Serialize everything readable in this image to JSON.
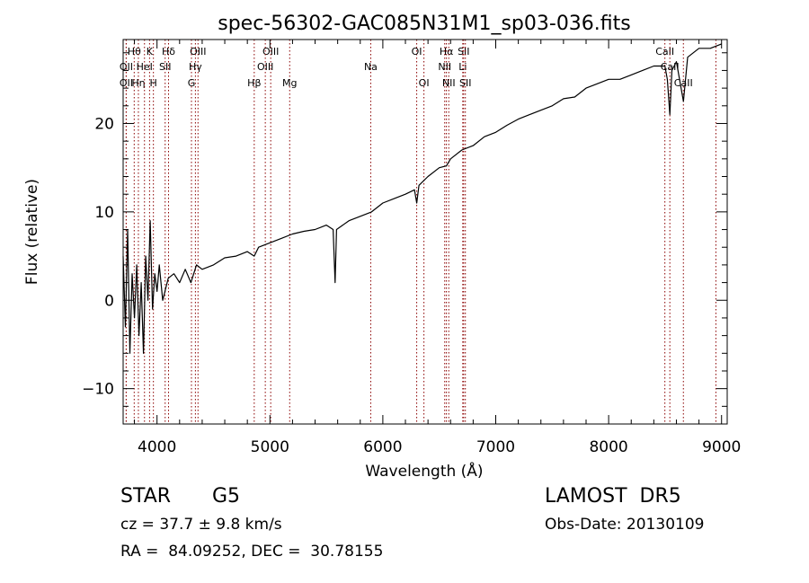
{
  "chart_data": {
    "type": "line",
    "title": "spec-56302-GAC085N31M1_sp03-036.fits",
    "xlabel": "Wavelength (Å)",
    "ylabel": "Flux (relative)",
    "xlim": [
      3700,
      9050
    ],
    "ylim": [
      -14,
      29.5
    ],
    "x_ticks": [
      4000,
      5000,
      6000,
      7000,
      8000,
      9000
    ],
    "y_ticks": [
      -10,
      0,
      10,
      20
    ],
    "grid": false,
    "line_color": "#000000",
    "marker_color": "#8b0000",
    "spectrum": {
      "name": "",
      "points": [
        [
          3700,
          5
        ],
        [
          3720,
          -3
        ],
        [
          3740,
          8
        ],
        [
          3760,
          -6
        ],
        [
          3780,
          3
        ],
        [
          3800,
          -2
        ],
        [
          3820,
          4
        ],
        [
          3840,
          -4
        ],
        [
          3860,
          2
        ],
        [
          3880,
          -6
        ],
        [
          3900,
          5
        ],
        [
          3920,
          0
        ],
        [
          3940,
          9
        ],
        [
          3960,
          -1
        ],
        [
          3980,
          3
        ],
        [
          4000,
          1
        ],
        [
          4020,
          4
        ],
        [
          4050,
          0
        ],
        [
          4100,
          2.5
        ],
        [
          4150,
          3
        ],
        [
          4200,
          2
        ],
        [
          4250,
          3.5
        ],
        [
          4300,
          2
        ],
        [
          4350,
          4
        ],
        [
          4400,
          3.5
        ],
        [
          4500,
          4
        ],
        [
          4600,
          4.8
        ],
        [
          4700,
          5
        ],
        [
          4800,
          5.5
        ],
        [
          4861,
          5
        ],
        [
          4900,
          6
        ],
        [
          5000,
          6.5
        ],
        [
          5100,
          7
        ],
        [
          5200,
          7.5
        ],
        [
          5300,
          7.8
        ],
        [
          5400,
          8
        ],
        [
          5500,
          8.5
        ],
        [
          5560,
          8
        ],
        [
          5577,
          2
        ],
        [
          5590,
          8
        ],
        [
          5700,
          9
        ],
        [
          5800,
          9.5
        ],
        [
          5900,
          10
        ],
        [
          6000,
          11
        ],
        [
          6100,
          11.5
        ],
        [
          6200,
          12
        ],
        [
          6280,
          12.5
        ],
        [
          6300,
          11
        ],
        [
          6320,
          13
        ],
        [
          6400,
          14
        ],
        [
          6500,
          15
        ],
        [
          6563,
          15.2
        ],
        [
          6600,
          16
        ],
        [
          6700,
          17
        ],
        [
          6800,
          17.5
        ],
        [
          6900,
          18.5
        ],
        [
          7000,
          19
        ],
        [
          7100,
          19.8
        ],
        [
          7200,
          20.5
        ],
        [
          7300,
          21
        ],
        [
          7400,
          21.5
        ],
        [
          7500,
          22
        ],
        [
          7600,
          22.8
        ],
        [
          7700,
          23
        ],
        [
          7800,
          24
        ],
        [
          7900,
          24.5
        ],
        [
          8000,
          25
        ],
        [
          8100,
          25
        ],
        [
          8200,
          25.5
        ],
        [
          8300,
          26
        ],
        [
          8400,
          26.5
        ],
        [
          8498,
          26.5
        ],
        [
          8520,
          25
        ],
        [
          8542,
          21
        ],
        [
          8560,
          26
        ],
        [
          8600,
          27
        ],
        [
          8662,
          22.5
        ],
        [
          8700,
          27.5
        ],
        [
          8800,
          28.5
        ],
        [
          8900,
          28.5
        ],
        [
          9000,
          29
        ]
      ]
    },
    "line_markers": [
      {
        "label": "Hθ",
        "x": 3798,
        "row": 0
      },
      {
        "label": "OII",
        "x": 3727,
        "row": 1
      },
      {
        "label": "OII",
        "x": 3727,
        "row": 2
      },
      {
        "label": "Hη",
        "x": 3835,
        "row": 2
      },
      {
        "label": "HeI",
        "x": 3889,
        "row": 1
      },
      {
        "label": "K",
        "x": 3934,
        "row": 0
      },
      {
        "label": "H",
        "x": 3968,
        "row": 2
      },
      {
        "label": "Hδ",
        "x": 4102,
        "row": 0
      },
      {
        "label": "SII",
        "x": 4072,
        "row": 1
      },
      {
        "label": "OIII",
        "x": 4363,
        "row": 0
      },
      {
        "label": "Hγ",
        "x": 4340,
        "row": 1
      },
      {
        "label": "G",
        "x": 4305,
        "row": 2
      },
      {
        "label": "Hβ",
        "x": 4861,
        "row": 2
      },
      {
        "label": "OIII",
        "x": 5007,
        "row": 0
      },
      {
        "label": "OIII",
        "x": 4959,
        "row": 1
      },
      {
        "label": "Mg",
        "x": 5175,
        "row": 2
      },
      {
        "label": "Na",
        "x": 5893,
        "row": 1
      },
      {
        "label": "OI",
        "x": 6300,
        "row": 0
      },
      {
        "label": "OI",
        "x": 6364,
        "row": 2
      },
      {
        "label": "Hα",
        "x": 6563,
        "row": 0
      },
      {
        "label": "NII",
        "x": 6548,
        "row": 1
      },
      {
        "label": "NII",
        "x": 6584,
        "row": 2
      },
      {
        "label": "SII",
        "x": 6716,
        "row": 0
      },
      {
        "label": "Li",
        "x": 6708,
        "row": 1
      },
      {
        "label": "SII",
        "x": 6731,
        "row": 2
      },
      {
        "label": "CaII",
        "x": 8498,
        "row": 0
      },
      {
        "label": "CaII",
        "x": 8542,
        "row": 1
      },
      {
        "label": "CaII",
        "x": 8662,
        "row": 2
      },
      {
        "label": "",
        "x": 8950,
        "row": 0
      }
    ]
  },
  "info": {
    "object_class": "STAR",
    "subclass": "G5",
    "survey": "LAMOST  DR5",
    "redshift": "cz = 37.7 ± 9.8 km/s",
    "obs_date": "Obs-Date: 20130109",
    "coords": "RA =  84.09252, DEC =  30.78155"
  }
}
